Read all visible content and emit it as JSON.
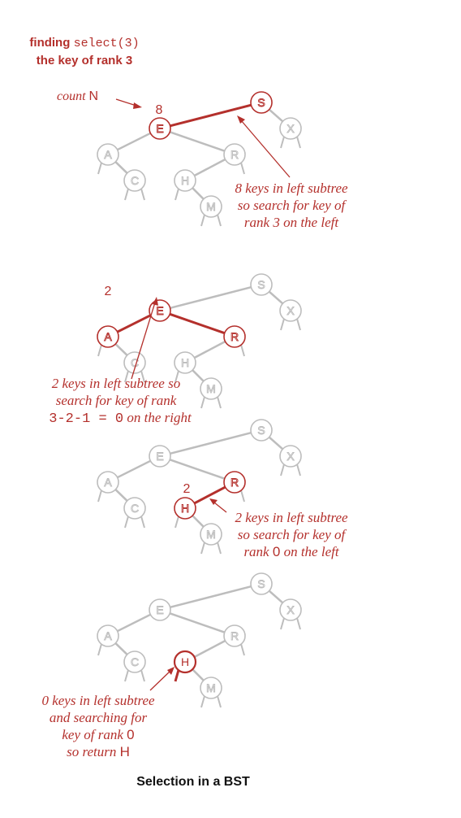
{
  "colors": {
    "highlight": "#b4302c",
    "inactive": "#bdbdbd",
    "text": "#111111"
  },
  "header": {
    "line1_word": "finding",
    "line1_code": "select(3)",
    "line2": "the key of rank 3"
  },
  "panel1": {
    "count_label": "count",
    "count_var": "N",
    "count_value": "8",
    "note": [
      "8 keys in left subtree",
      "so search for key of",
      "rank 3 on the left"
    ]
  },
  "panel2": {
    "count_value": "2",
    "note": [
      "2 keys in left subtree so",
      "search for key of rank"
    ],
    "note_expr": "3-2-1  =  0",
    "note_expr_tail": "on the right"
  },
  "panel3": {
    "count_value": "2",
    "note": [
      "2 keys in left subtree",
      "so search for key of"
    ],
    "note_rank_pre": "rank",
    "note_rank_val": "0",
    "note_rank_post": "on the left"
  },
  "panel4": {
    "note1": "0 keys in left subtree",
    "note2": "and searching for",
    "note3_pre": "key of rank",
    "note3_val": "0",
    "note4_pre": "so return",
    "note4_val": "H"
  },
  "caption": "Selection in a BST",
  "tree": {
    "S": "S",
    "E": "E",
    "X": "X",
    "A": "A",
    "R": "R",
    "C": "C",
    "H": "H",
    "M": "M"
  }
}
